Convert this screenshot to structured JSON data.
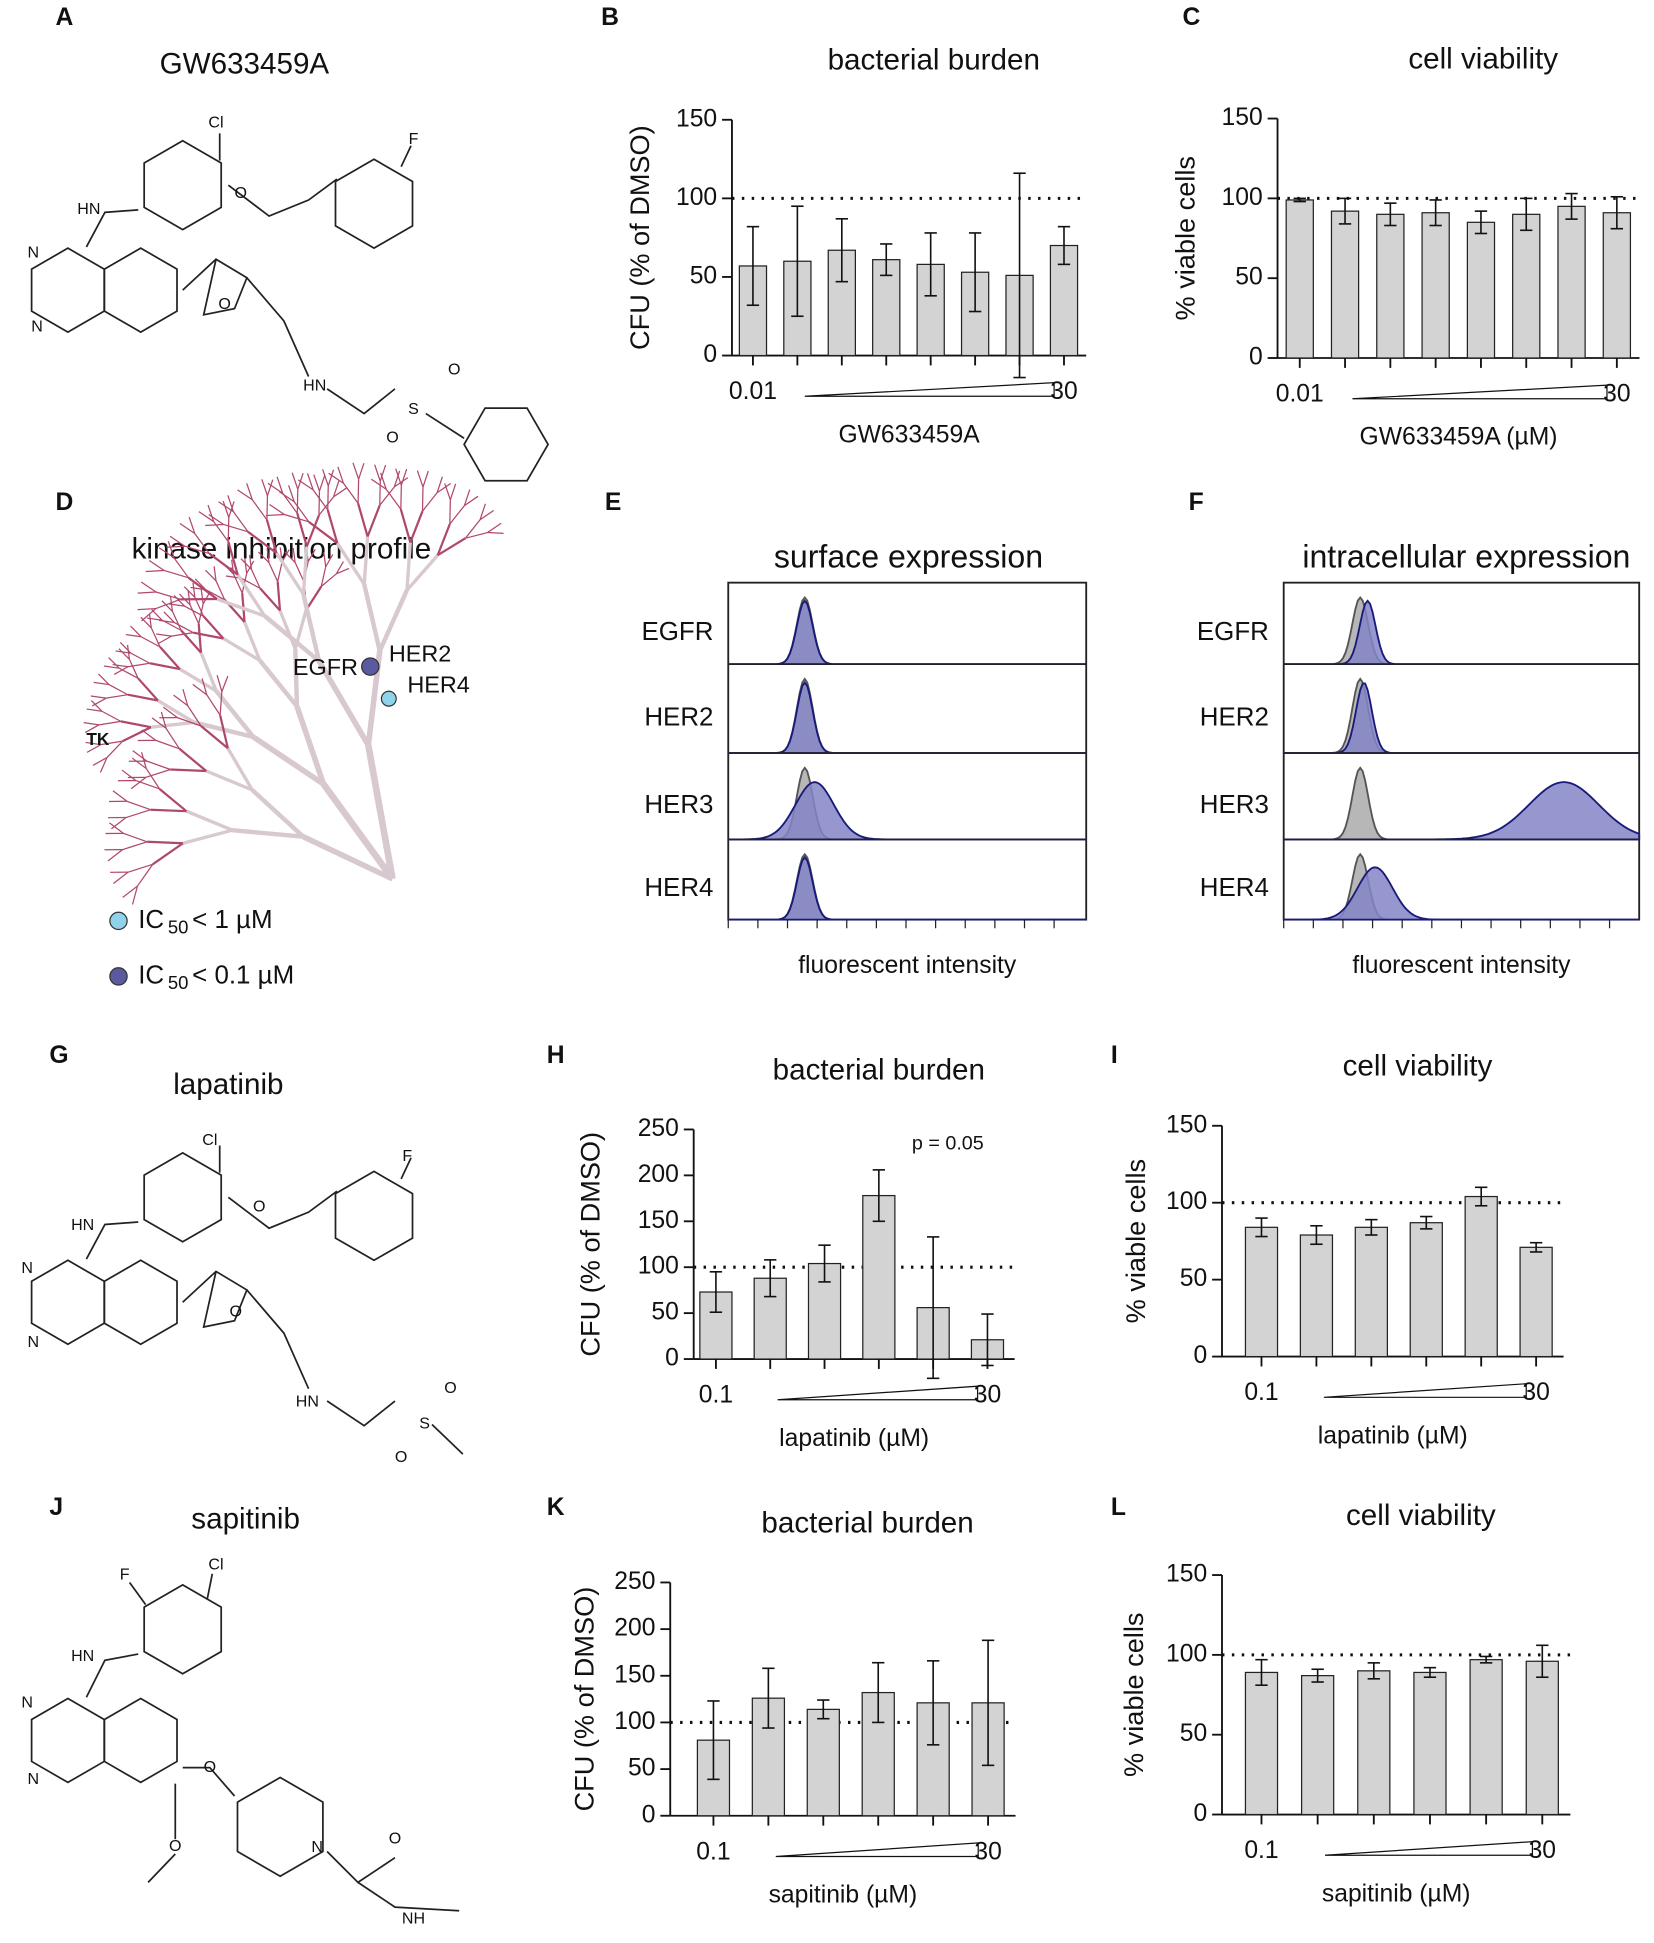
{
  "chart_data": [
    {
      "type": "bar",
      "panel": "B",
      "title": "bacterial burden",
      "ylabel": "CFU  (% of DMSO)",
      "xlabel": "GW633459A",
      "categories": [
        "0.01",
        null,
        null,
        null,
        null,
        null,
        null,
        "30"
      ],
      "values": [
        57,
        60,
        67,
        61,
        58,
        53,
        51,
        70
      ],
      "errors": [
        25,
        35,
        20,
        10,
        20,
        25,
        65,
        12
      ],
      "ylim": [
        0,
        150
      ],
      "yticks": [
        0,
        50,
        100,
        150
      ],
      "reference": 100,
      "color": "#d3d3d3"
    },
    {
      "type": "bar",
      "panel": "C",
      "title": "cell viability",
      "ylabel": "% viable cells",
      "xlabel": "GW633459A (µM)",
      "categories": [
        "0.01",
        null,
        null,
        null,
        null,
        null,
        null,
        "30"
      ],
      "values": [
        99,
        92,
        90,
        91,
        85,
        90,
        95,
        91
      ],
      "errors": [
        1,
        8,
        7,
        8,
        7,
        10,
        8,
        10
      ],
      "ylim": [
        0,
        150
      ],
      "yticks": [
        0,
        50,
        100,
        150
      ],
      "reference": 100,
      "color": "#d3d3d3"
    },
    {
      "type": "bar",
      "panel": "H",
      "title": "bacterial burden",
      "ylabel": "CFU (% of DMSO)",
      "xlabel": "lapatinib (µM)",
      "annotation": "p = 0.05",
      "categories": [
        "0.1",
        null,
        null,
        null,
        null,
        "30"
      ],
      "values": [
        73,
        88,
        104,
        178,
        56,
        21
      ],
      "errors": [
        22,
        20,
        20,
        28,
        77,
        28
      ],
      "ylim": [
        0,
        250
      ],
      "yticks": [
        0,
        50,
        100,
        150,
        200,
        250
      ],
      "reference": 100,
      "color": "#d3d3d3"
    },
    {
      "type": "bar",
      "panel": "I",
      "title": "cell viability",
      "ylabel": "% viable cells",
      "xlabel": "lapatinib (µM)",
      "categories": [
        "0.1",
        null,
        null,
        null,
        null,
        "30"
      ],
      "values": [
        84,
        79,
        84,
        87,
        104,
        71
      ],
      "errors": [
        6,
        6,
        5,
        4,
        6,
        3
      ],
      "ylim": [
        0,
        150
      ],
      "yticks": [
        0,
        50,
        100,
        150
      ],
      "reference": 100,
      "color": "#d3d3d3"
    },
    {
      "type": "bar",
      "panel": "K",
      "title": "bacterial burden",
      "ylabel": "CFU (% of DMSO)",
      "xlabel": "sapitinib (µM)",
      "categories": [
        "0.1",
        null,
        null,
        null,
        null,
        "30"
      ],
      "values": [
        81,
        126,
        114,
        132,
        121,
        121
      ],
      "errors": [
        42,
        32,
        10,
        32,
        45,
        67
      ],
      "ylim": [
        0,
        250
      ],
      "yticks": [
        0,
        50,
        100,
        150,
        200,
        250
      ],
      "reference": 100,
      "color": "#d3d3d3"
    },
    {
      "type": "bar",
      "panel": "L",
      "title": "cell viability",
      "ylabel": "% viable cells",
      "xlabel": "sapitinib (µM)",
      "categories": [
        "0.1",
        null,
        null,
        null,
        null,
        "30"
      ],
      "values": [
        89,
        87,
        90,
        89,
        97,
        96
      ],
      "errors": [
        8,
        4,
        5,
        3,
        2,
        10
      ],
      "ylim": [
        0,
        150
      ],
      "yticks": [
        0,
        50,
        100,
        150
      ],
      "reference": 100,
      "color": "#d3d3d3"
    }
  ],
  "panels": {
    "A": {
      "letter": "A",
      "title": "GW633459A",
      "atoms": [
        "Cl",
        "F",
        "HN",
        "O",
        "N",
        "N",
        "O",
        "HN",
        "S",
        "O",
        "O"
      ]
    },
    "D": {
      "letter": "D",
      "title": "kinase inhibition profile",
      "labels": [
        "EGFR",
        "HER2",
        "HER4",
        "TK"
      ],
      "legend": [
        {
          "color": "#8fd3ea",
          "text": "IC",
          "sub": "50",
          "rest": "< 1 µM"
        },
        {
          "color": "#5b5aa0",
          "text": "IC",
          "sub": "50",
          "rest": "< 0.1 µM"
        }
      ]
    },
    "E": {
      "letter": "E",
      "title": "surface expression",
      "rows": [
        "EGFR",
        "HER2",
        "HER3",
        "HER4"
      ],
      "xlabel": "fluorescent intensity"
    },
    "F": {
      "letter": "F",
      "title": "intracellular expression",
      "rows": [
        "EGFR",
        "HER2",
        "HER3",
        "HER4"
      ],
      "xlabel": "fluorescent intensity"
    },
    "G": {
      "letter": "G",
      "title": "lapatinib",
      "atoms": [
        "Cl",
        "F",
        "HN",
        "O",
        "N",
        "N",
        "O",
        "HN",
        "S",
        "O",
        "O"
      ]
    },
    "J": {
      "letter": "J",
      "title": "sapitinib",
      "atoms": [
        "F",
        "Cl",
        "HN",
        "N",
        "N",
        "O",
        "O",
        "N",
        "O",
        "NH"
      ]
    }
  }
}
